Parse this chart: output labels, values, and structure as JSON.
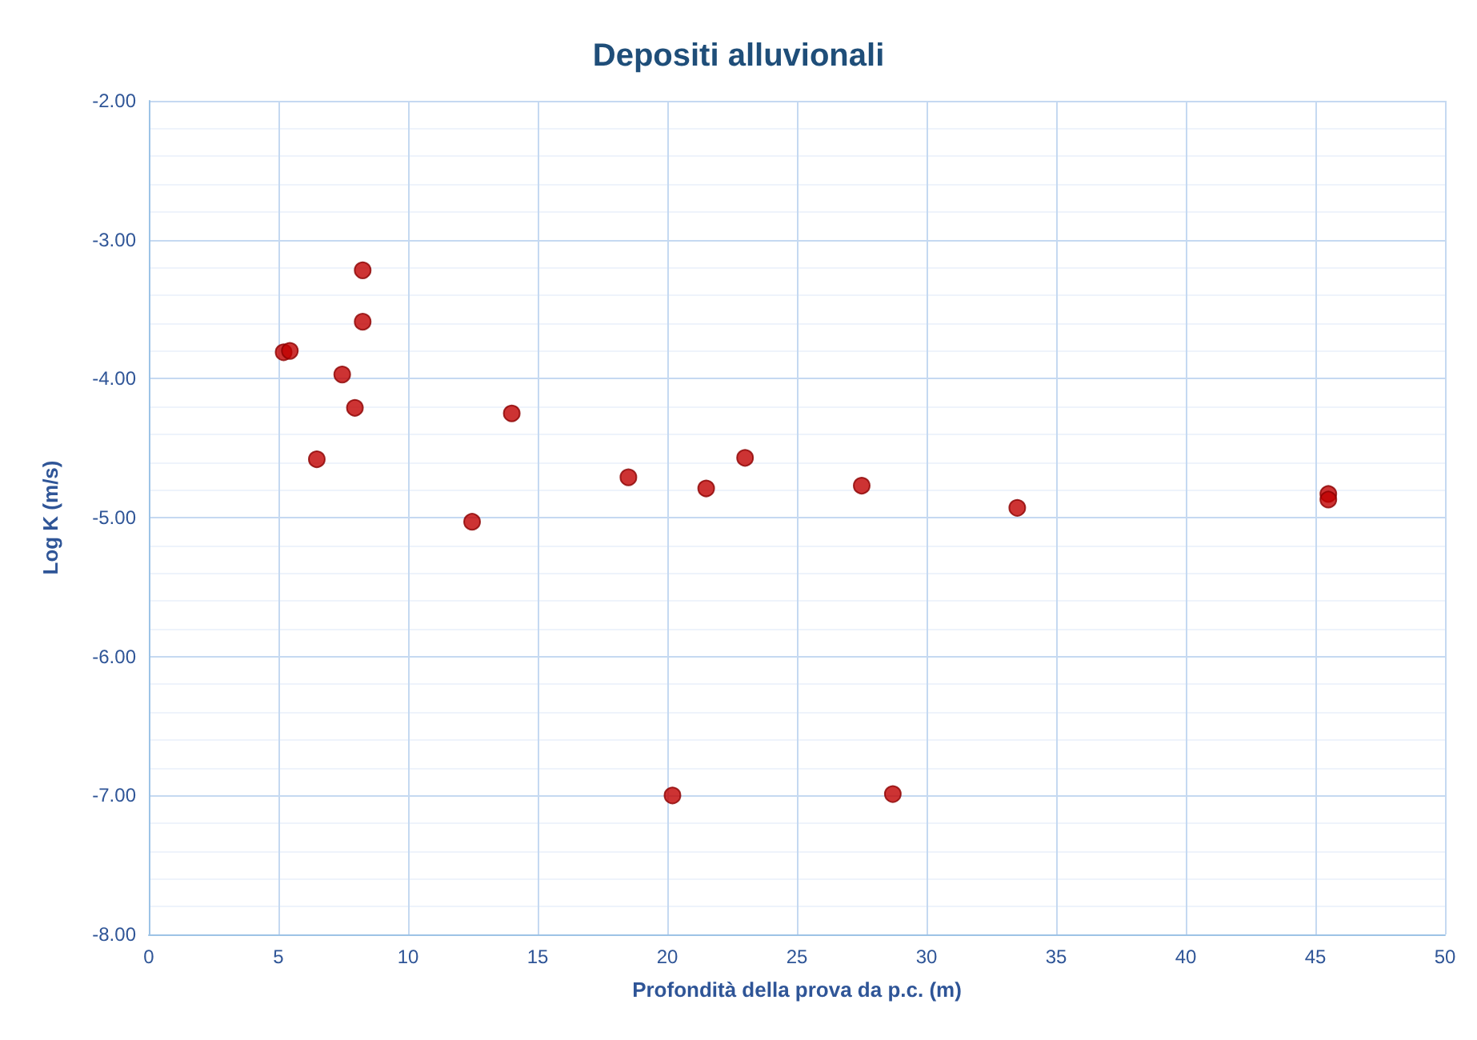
{
  "chart_data": {
    "type": "scatter",
    "title": "Depositi alluvionali",
    "xlabel": "Profondità della prova da p.c. (m)",
    "ylabel": "Log K (m/s)",
    "x": [
      5.2,
      5.44,
      8.25,
      8.25,
      7.46,
      7.95,
      6.48,
      14.0,
      12.47,
      18.5,
      21.5,
      23.0,
      27.5,
      33.5,
      45.5,
      45.5,
      20.2,
      28.7
    ],
    "series": [
      {
        "color": "#c00000",
        "values": [
          -3.81,
          -3.8,
          -3.22,
          -3.59,
          -3.97,
          -4.21,
          -4.58,
          -4.25,
          -5.03,
          -4.71,
          -4.79,
          -4.57,
          -4.77,
          -4.93,
          -4.83,
          -4.87,
          -7.0,
          -6.99
        ]
      }
    ],
    "xlim": [
      0,
      50
    ],
    "xticks": [
      0,
      5,
      10,
      15,
      20,
      25,
      30,
      35,
      40,
      45,
      50
    ],
    "ylim": [
      -8,
      -2
    ],
    "yticks": [
      {
        "value": -8,
        "label": "-8.00"
      },
      {
        "value": -7,
        "label": "-7.00"
      },
      {
        "value": -6,
        "label": "-6.00"
      },
      {
        "value": -5,
        "label": "-5.00"
      },
      {
        "value": -4,
        "label": "-4.00"
      },
      {
        "value": -3,
        "label": "-3.00"
      },
      {
        "value": -2,
        "label": "-2.00"
      }
    ],
    "grid": true,
    "marker": "circle"
  }
}
